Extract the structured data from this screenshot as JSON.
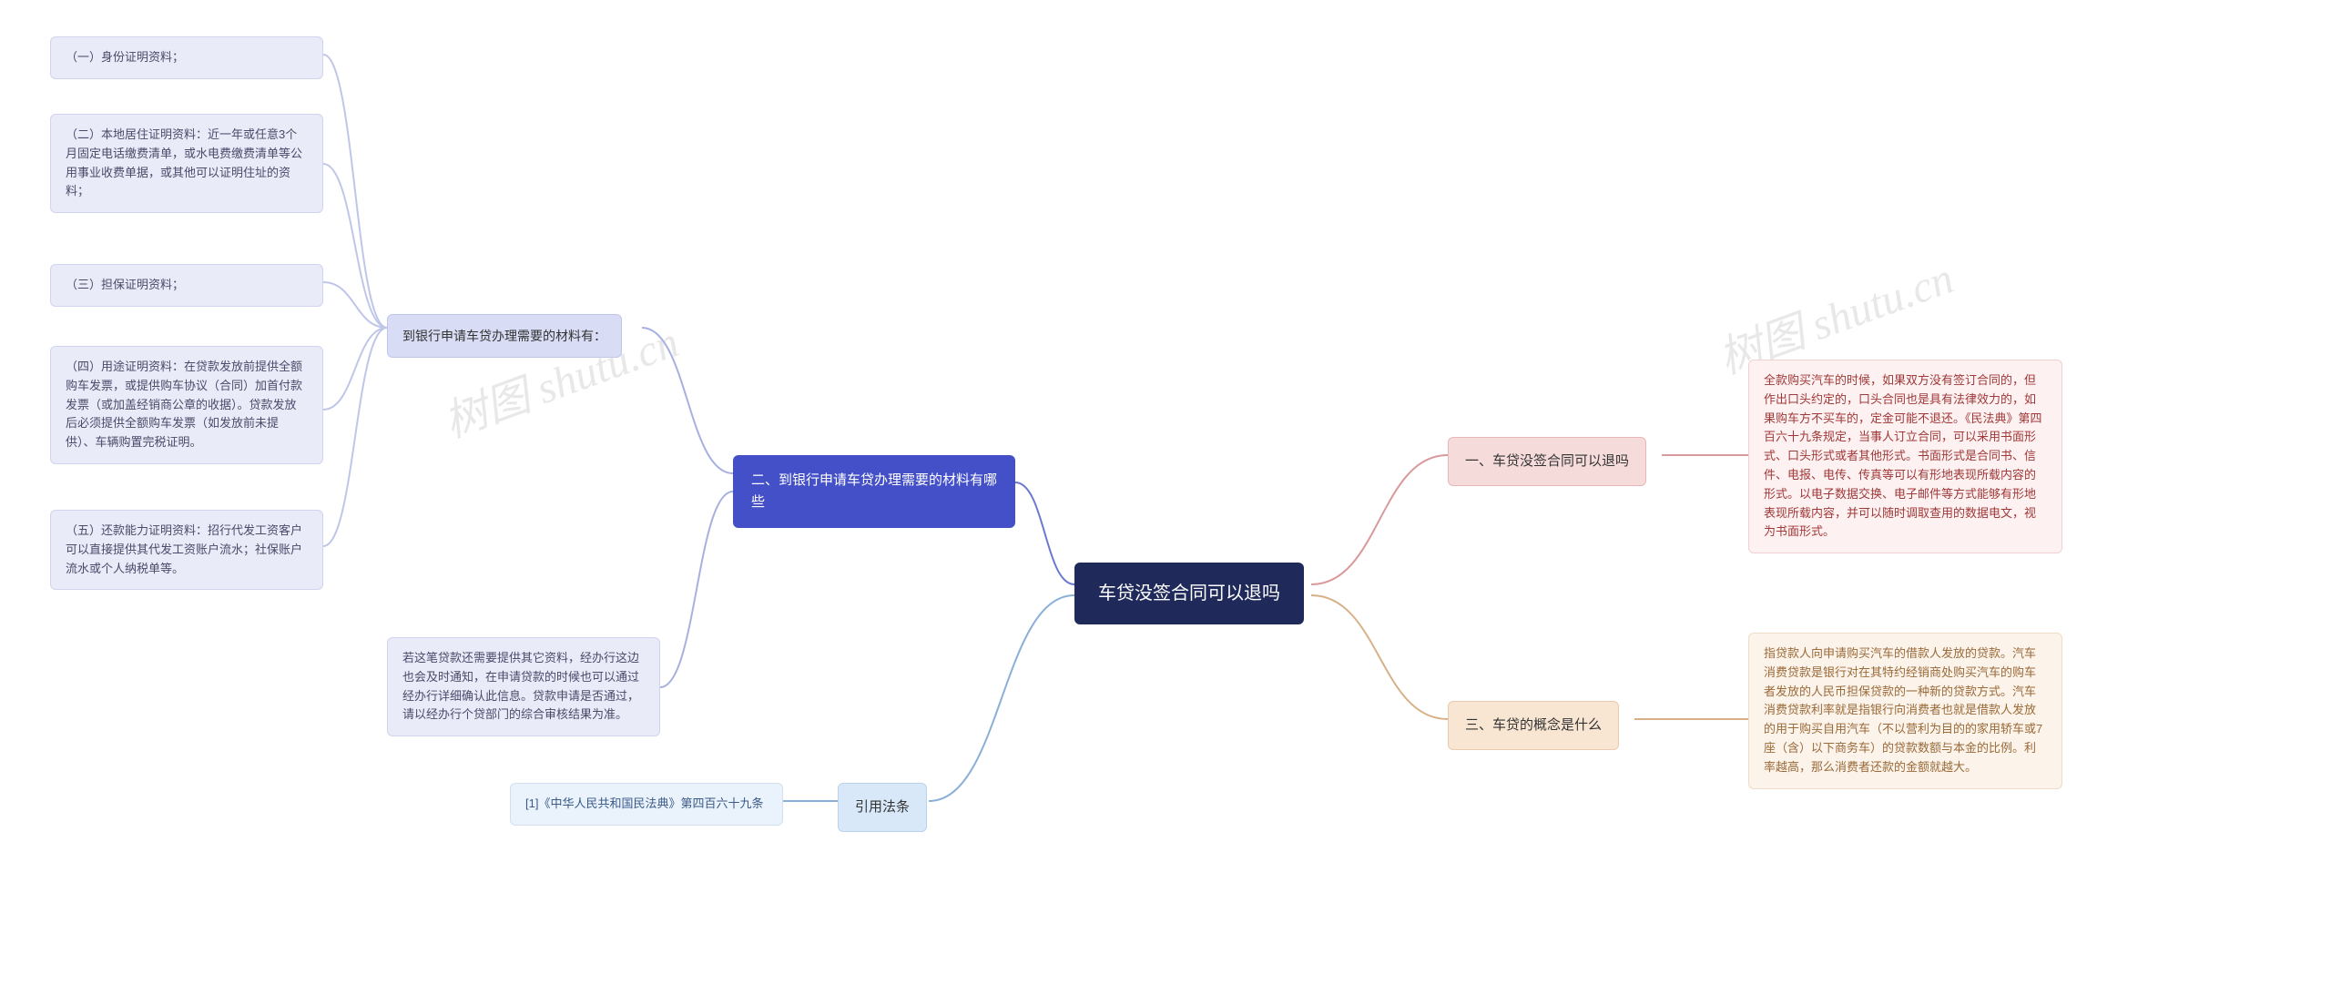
{
  "diagram": {
    "type": "mindmap",
    "root": {
      "text": "车贷没签合同可以退吗",
      "bg": "#1f2a5b",
      "color": "#ffffff",
      "fontsize": 20
    },
    "branch1": {
      "title": "一、车贷没签合同可以退吗",
      "bg": "#f6dbdb",
      "border": "#e8b8b8",
      "leaf": {
        "text": "全款购买汽车的时候，如果双方没有签订合同的，但作出口头约定的，口头合同也是具有法律效力的，如果购车方不买车的，定金可能不退还。《民法典》第四百六十九条规定，当事人订立合同，可以采用书面形式、口头形式或者其他形式。书面形式是合同书、信件、电报、电传、传真等可以有形地表现所载内容的形式。以电子数据交换、电子邮件等方式能够有形地表现所载内容，并可以随时调取查用的数据电文，视为书面形式。",
        "bg": "#fef1f1",
        "border": "#f0d0d0",
        "color": "#a03838"
      }
    },
    "branch3": {
      "title": "三、车贷的概念是什么",
      "bg": "#f8e5d2",
      "border": "#e8cbb0",
      "leaf": {
        "text": "指贷款人向申请购买汽车的借款人发放的贷款。汽车消费贷款是银行对在其特约经销商处购买汽车的购车者发放的人民币担保贷款的一种新的贷款方式。汽车消费贷款利率就是指银行向消费者也就是借款人发放的用于购买自用汽车（不以营利为目的的家用轿车或7座（含）以下商务车）的贷款数额与本金的比例。利率越高，那么消费者还款的金额就越大。",
        "bg": "#fcf3ea",
        "border": "#f0dcc8",
        "color": "#9a6a38"
      }
    },
    "branch2": {
      "title": "二、到银行申请车贷办理需要的材料有哪些",
      "bg": "#4350c8",
      "color": "#ffffff",
      "sub": {
        "text": "到银行申请车贷办理需要的材料有：",
        "bg": "#d8dcf5",
        "items": [
          "（一）身份证明资料；",
          "（二）本地居住证明资料：近一年或任意3个月固定电话缴费清单，或水电费缴费清单等公用事业收费单据，或其他可以证明住址的资料；",
          "（三）担保证明资料；",
          "（四）用途证明资料：在贷款发放前提供全额购车发票，或提供购车协议（合同）加首付款发票（或加盖经销商公章的收据）。贷款发放后必须提供全额购车发票（如发放前未提供）、车辆购置完税证明。",
          "（五）还款能力证明资料：招行代发工资客户可以直接提供其代发工资账户流水；社保账户流水或个人纳税单等。"
        ]
      },
      "note": "若这笔贷款还需要提供其它资料，经办行这边也会及时通知，在申请贷款的时候也可以通过经办行详细确认此信息。贷款申请是否通过，请以经办行个贷部门的综合审核结果为准。"
    },
    "branch4": {
      "title": "引用法条",
      "bg": "#d8e8f8",
      "border": "#b8d4ec",
      "leaf": {
        "text": "[1]《中华人民共和国民法典》第四百六十九条",
        "bg": "#eaf2fb",
        "border": "#d0e0f0",
        "color": "#3a5a8a"
      }
    },
    "watermarks": [
      "树图 shutu.cn",
      "树图 shutu.cn"
    ],
    "connectors": {
      "stroke_right_1": "#d89a9a",
      "stroke_right_3": "#d8b088",
      "stroke_left_2": "#6a78d0",
      "stroke_left_4": "#8ab0d8",
      "stroke_sub": "#a8b0e0",
      "stroke_leaf": "#c0c6e8",
      "width": 2
    }
  }
}
